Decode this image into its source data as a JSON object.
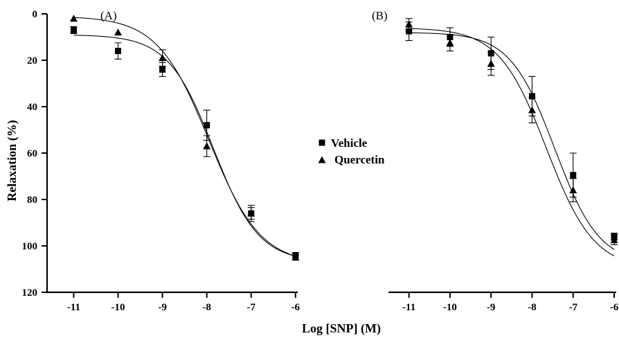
{
  "chart_data": [
    {
      "type": "line",
      "panel_label": "(A)",
      "x": [
        -11,
        -10,
        -9,
        -8,
        -7,
        -6
      ],
      "xlim": [
        -11.6,
        -5.95
      ],
      "ylim": [
        0,
        120
      ],
      "y_inverted": true,
      "xticks": [
        -11,
        -10,
        -9,
        -8,
        -7,
        -6
      ],
      "yticks": [
        0,
        20,
        40,
        60,
        80,
        100,
        120
      ],
      "grid": false,
      "series": [
        {
          "name": "Vehicle",
          "marker": "square",
          "values": [
            7,
            16,
            24,
            48,
            86,
            104
          ],
          "err_up": [
            1.5,
            3.5,
            3,
            6.5,
            3.5,
            1
          ],
          "err_down": [
            1.5,
            3.5,
            3,
            6.5,
            3.5,
            1
          ],
          "fit": {
            "bottom": 9,
            "top": 107,
            "logec50": -7.85,
            "hill": 0.85
          }
        },
        {
          "name": "Quercetin",
          "marker": "triangle",
          "values": [
            2,
            8,
            19,
            57,
            86,
            105
          ],
          "err_up": [
            0,
            0,
            3.5,
            4.5,
            2.5,
            1
          ],
          "err_down": [
            0,
            0,
            3.5,
            4.5,
            2.5,
            1
          ],
          "fit": {
            "bottom": 1,
            "top": 108,
            "logec50": -7.95,
            "hill": 0.75
          }
        }
      ]
    },
    {
      "type": "line",
      "panel_label": "(B)",
      "x": [
        -11,
        -10,
        -9,
        -8,
        -7,
        -6
      ],
      "xlim": [
        -11.5,
        -5.95
      ],
      "ylim": [
        0,
        120
      ],
      "y_inverted": true,
      "xticks": [
        -11,
        -10,
        -9,
        -8,
        -7,
        -6
      ],
      "yticks": [],
      "grid": false,
      "series": [
        {
          "name": "Vehicle",
          "marker": "square",
          "values": [
            7.5,
            10,
            17,
            35.5,
            69.5,
            96
          ],
          "err_up": [
            4,
            4,
            7,
            8.5,
            9.5,
            1.5
          ],
          "err_down": [
            4,
            4,
            7,
            8.5,
            9.5,
            1.5
          ],
          "fit": {
            "bottom": 8,
            "top": 108,
            "logec50": -7.45,
            "hill": 0.8
          }
        },
        {
          "name": "Quercetin",
          "marker": "triangle",
          "values": [
            4.5,
            12.5,
            21.5,
            41.5,
            76,
            97.5
          ],
          "err_up": [
            2.5,
            3.5,
            5,
            5.5,
            5,
            2
          ],
          "err_down": [
            2.5,
            3.5,
            5,
            5.5,
            5,
            2
          ],
          "fit": {
            "bottom": 6,
            "top": 110,
            "logec50": -7.65,
            "hill": 0.75
          }
        }
      ]
    }
  ],
  "xlabel": "Log [SNP] (M)",
  "ylabel": "Relaxation (%)",
  "legend": {
    "placement": "center",
    "entries": [
      {
        "name": "Vehicle",
        "marker": "square"
      },
      {
        "name": "Quercetin",
        "marker": "triangle"
      }
    ]
  }
}
